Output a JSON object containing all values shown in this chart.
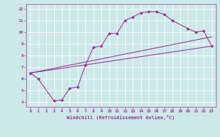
{
  "xlabel": "Windchill (Refroidissement éolien,°C)",
  "bg_color": "#cce8e8",
  "line_color": "#993399",
  "xlim": [
    -0.5,
    23.5
  ],
  "ylim": [
    3.6,
    12.4
  ],
  "xticks": [
    0,
    1,
    2,
    3,
    4,
    5,
    6,
    7,
    8,
    9,
    10,
    11,
    12,
    13,
    14,
    15,
    16,
    17,
    18,
    19,
    20,
    21,
    22,
    23
  ],
  "yticks": [
    4,
    5,
    6,
    7,
    8,
    9,
    10,
    11,
    12
  ],
  "curve1_x": [
    0,
    1,
    3,
    4,
    5,
    6,
    7,
    8,
    9,
    10,
    11,
    12,
    13,
    14,
    15,
    16,
    17,
    18,
    20,
    21,
    22,
    23
  ],
  "curve1_y": [
    6.5,
    6.0,
    4.1,
    4.2,
    5.2,
    5.3,
    7.2,
    8.7,
    8.8,
    9.9,
    9.9,
    11.0,
    11.3,
    11.65,
    11.75,
    11.75,
    11.5,
    11.0,
    10.3,
    10.0,
    10.1,
    8.8
  ],
  "curve2_x": [
    0,
    23
  ],
  "curve2_y": [
    6.5,
    8.8
  ],
  "curve3_x": [
    0,
    23
  ],
  "curve3_y": [
    6.5,
    9.6
  ]
}
